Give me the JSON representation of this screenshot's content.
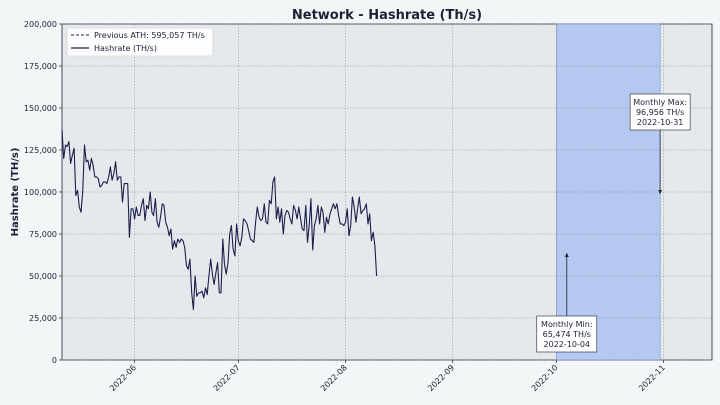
{
  "chart_data": {
    "type": "line",
    "title": "Network - Hashrate (Th/s)",
    "ylabel": "Hashrate (TH/s)",
    "xlabel": "",
    "ylim": [
      0,
      200000
    ],
    "xlim": [
      "2022-05-11",
      "2022-11-15"
    ],
    "grid": true,
    "legend_position": "top-left",
    "yticks": [
      0,
      25000,
      50000,
      75000,
      100000,
      125000,
      150000,
      175000,
      200000
    ],
    "ytick_labels": [
      "0",
      "25,000",
      "50,000",
      "75,000",
      "100,000",
      "125,000",
      "150,000",
      "175,000",
      "200,000"
    ],
    "xticks": [
      "2022-06-01",
      "2022-07-01",
      "2022-08-01",
      "2022-09-01",
      "2022-10-01",
      "2022-11-01"
    ],
    "xtick_labels": [
      "2022-06",
      "2022-07",
      "2022-08",
      "2022-09",
      "2022-10",
      "2022-11"
    ],
    "reference_line": {
      "name": "Previous ATH: 595,057 TH/s",
      "value": 595057,
      "style": "dashed"
    },
    "highlight_span": {
      "start": "2022-10-01",
      "end": "2022-10-31"
    },
    "annotations": [
      {
        "id": "max",
        "lines": [
          "Monthly Max:",
          "96,956 TH/s",
          "2022-10-31"
        ],
        "x": "2022-10-31",
        "y": 96956,
        "box_position": "above"
      },
      {
        "id": "min",
        "lines": [
          "Monthly Min:",
          "65,474 TH/s",
          "2022-10-04"
        ],
        "x": "2022-10-04",
        "y": 65474,
        "box_position": "below"
      }
    ],
    "series": [
      {
        "name": "Hashrate (TH/s)",
        "color": "#1b1f4b",
        "start_date": "2022-05-11",
        "step_days": 0.5,
        "values": [
          137000,
          120000,
          128000,
          127000,
          130000,
          117000,
          122000,
          126000,
          98000,
          101000,
          91000,
          88000,
          100000,
          128000,
          118000,
          119000,
          113000,
          120000,
          116000,
          109000,
          109000,
          108000,
          103000,
          104000,
          106000,
          106000,
          105000,
          109000,
          115000,
          107000,
          111000,
          118000,
          107000,
          109000,
          109000,
          94000,
          105000,
          105000,
          105000,
          73000,
          90000,
          90000,
          84000,
          91000,
          86000,
          86000,
          92000,
          96000,
          83000,
          92000,
          90000,
          100000,
          88000,
          86000,
          96000,
          82000,
          79000,
          85000,
          93000,
          92000,
          82000,
          79000,
          74000,
          78000,
          66000,
          71000,
          67000,
          72000,
          70000,
          72000,
          71000,
          67000,
          56000,
          54000,
          60000,
          40000,
          30000,
          50000,
          38000,
          40000,
          40000,
          41000,
          37000,
          43000,
          39000,
          50000,
          60000,
          51000,
          45000,
          52000,
          58000,
          40000,
          40000,
          72000,
          57000,
          51000,
          58000,
          75000,
          80000,
          66000,
          62000,
          81000,
          71000,
          68000,
          73000,
          84000,
          83000,
          81000,
          77000,
          72000,
          71000,
          70000,
          82000,
          91000,
          85000,
          83000,
          84000,
          93000,
          82000,
          81000,
          95000,
          93000,
          106000,
          109000,
          84000,
          91000,
          82000,
          90000,
          75000,
          86000,
          89000,
          88000,
          84000,
          81000,
          92000,
          89000,
          84000,
          91000,
          84000,
          78000,
          77000,
          92000,
          70000,
          80000,
          96000,
          65474,
          80000,
          84000,
          92000,
          81000,
          91000,
          88000,
          76000,
          85000,
          81000,
          87000,
          90000,
          93000,
          90000,
          93000,
          86000,
          81000,
          81000,
          80000,
          82000,
          90000,
          74000,
          80000,
          97000,
          91000,
          82000,
          90000,
          96956,
          87000,
          89000,
          90000,
          93000,
          81000,
          87000,
          71000,
          76000,
          68000,
          50000
        ]
      }
    ]
  }
}
